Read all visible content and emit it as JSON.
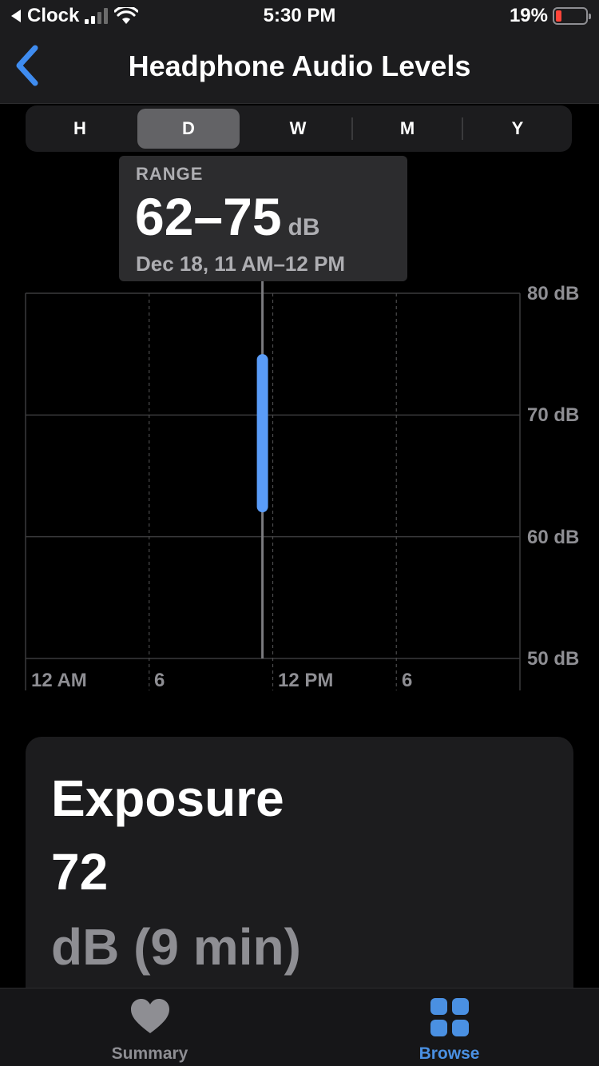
{
  "status_bar": {
    "back_app": "Clock",
    "time": "5:30 PM",
    "battery": "19%",
    "battery_level": 0.19
  },
  "nav": {
    "title": "Headphone Audio Levels"
  },
  "segments": [
    {
      "label": "H",
      "active": false
    },
    {
      "label": "D",
      "active": true
    },
    {
      "label": "W",
      "active": false
    },
    {
      "label": "M",
      "active": false
    },
    {
      "label": "Y",
      "active": false
    }
  ],
  "tooltip": {
    "label": "RANGE",
    "value": "62–75",
    "unit": "dB",
    "date": "Dec 18, 11 AM–12 PM"
  },
  "chart_data": {
    "type": "bar",
    "y_ticks": [
      "80 dB",
      "70 dB",
      "60 dB",
      "50 dB"
    ],
    "x_ticks": [
      "12 AM",
      "6",
      "12 PM",
      "6"
    ],
    "ylim": [
      50,
      80
    ],
    "xlim_hours": [
      0,
      24
    ],
    "bars": [
      {
        "hour_start": 11,
        "hour_end": 12,
        "min": 62,
        "max": 75
      }
    ],
    "selected_hour": 11.5,
    "bar_color": "#5a9cf8"
  },
  "exposure": {
    "title": "Exposure",
    "value": "72",
    "unit": "dB (9 min)"
  },
  "tabs": [
    {
      "label": "Summary",
      "icon": "heart-icon",
      "active": false,
      "color": "#8e8e93"
    },
    {
      "label": "Browse",
      "icon": "grid-icon",
      "active": true,
      "color": "#4a90e2"
    }
  ]
}
